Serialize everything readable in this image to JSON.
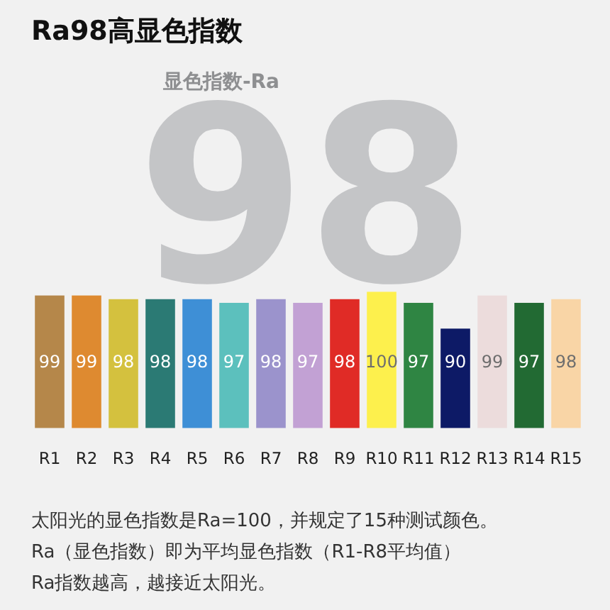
{
  "chart_data": {
    "type": "bar",
    "title": "Ra98高显色指数",
    "categories": [
      "R1",
      "R2",
      "R3",
      "R4",
      "R5",
      "R6",
      "R7",
      "R8",
      "R9",
      "R10",
      "R11",
      "R12",
      "R13",
      "R14",
      "R15"
    ],
    "values": [
      99,
      99,
      98,
      98,
      98,
      97,
      98,
      97,
      98,
      100,
      97,
      90,
      99,
      97,
      98
    ],
    "colors": [
      "#b5874a",
      "#de8a30",
      "#d4c13e",
      "#2b7a74",
      "#3e8fd6",
      "#5cc0bd",
      "#9b93cc",
      "#c2a1d4",
      "#e02b26",
      "#fdf04d",
      "#2f8543",
      "#0d1a66",
      "#ecdcdc",
      "#226a33",
      "#f9d5a6"
    ],
    "ylim": [
      63,
      100
    ],
    "tick_labels": "x",
    "data_labels": true,
    "annotations": [
      "98",
      "显色指数-Ra",
      "太阳光的显色指数是Ra=100，并规定了15种测试颜色。",
      "Ra（显色指数）即为平均显色指数（R1-R8平均值）",
      "Ra指数越高，越接近太阳光。"
    ]
  }
}
